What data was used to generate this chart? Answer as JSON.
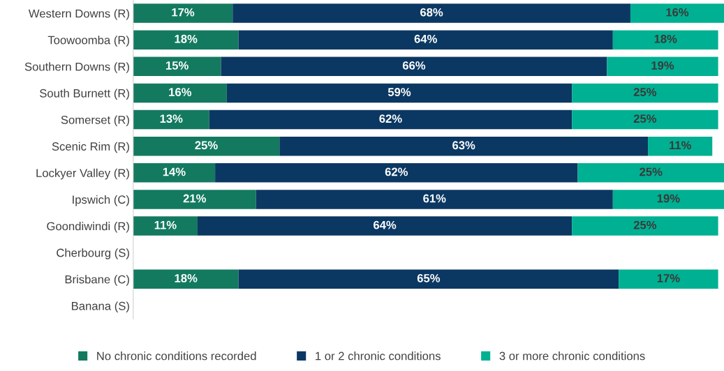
{
  "chart_data": {
    "type": "bar",
    "orientation": "horizontal",
    "stacked": true,
    "legend": "bottom",
    "grid": false,
    "tick_labels": "y",
    "categories": [
      "Western Downs (R)",
      "Toowoomba (R)",
      "Southern Downs (R)",
      "South Burnett (R)",
      "Somerset (R)",
      "Scenic Rim (R)",
      "Lockyer Valley (R)",
      "Ipswich (C)",
      "Goondiwindi (R)",
      "Cherbourg (S)",
      "Brisbane (C)",
      "Banana (S)"
    ],
    "series": [
      {
        "name": "No chronic conditions recorded",
        "color": "#137a60",
        "values": [
          17,
          18,
          15,
          16,
          13,
          25,
          14,
          21,
          11,
          null,
          18,
          null
        ],
        "value_labels": [
          "17%",
          "18%",
          "15%",
          "16%",
          "13%",
          "25%",
          "14%",
          "21%",
          "11%",
          null,
          "18%",
          null
        ]
      },
      {
        "name": "1 or 2 chronic conditions",
        "color": "#0b3862",
        "values": [
          68,
          64,
          66,
          59,
          62,
          63,
          62,
          61,
          64,
          null,
          65,
          null
        ],
        "value_labels": [
          "68%",
          "64%",
          "66%",
          "59%",
          "62%",
          "63%",
          "62%",
          "61%",
          "64%",
          null,
          "65%",
          null
        ]
      },
      {
        "name": "3 or more chronic conditions",
        "color": "#00b092",
        "values": [
          16,
          18,
          19,
          25,
          25,
          11,
          25,
          19,
          25,
          null,
          17,
          null
        ],
        "value_labels": [
          "16%",
          "18%",
          "19%",
          "25%",
          "25%",
          "11%",
          "25%",
          "19%",
          "25%",
          null,
          "17%",
          null
        ]
      }
    ]
  }
}
